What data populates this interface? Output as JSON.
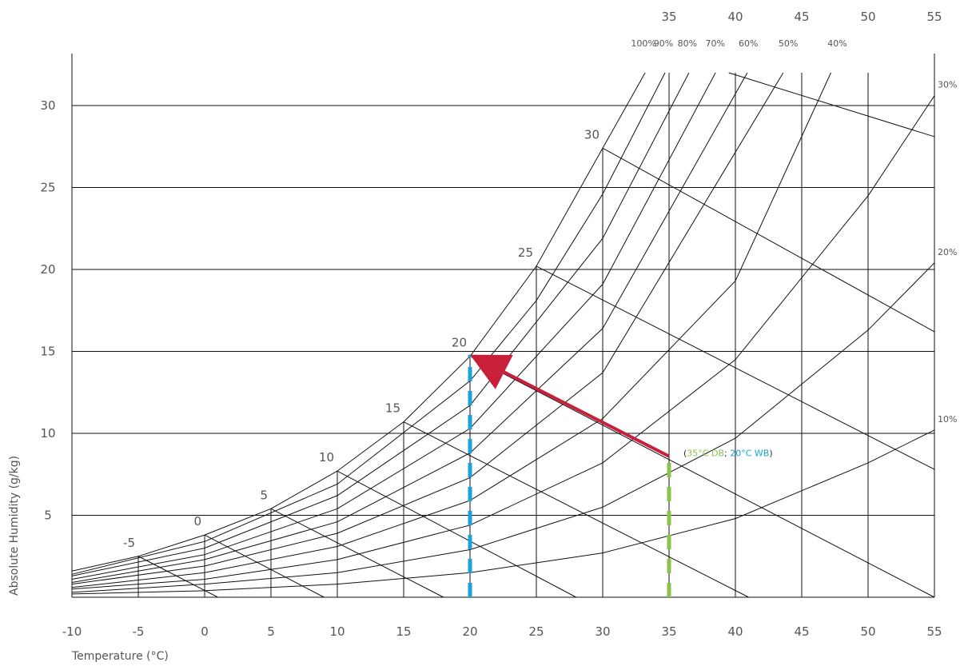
{
  "chart_data": {
    "type": "line",
    "title": "",
    "xlabel": "Temperature (°C)",
    "ylabel": "Absolute Humidity (g/kg)",
    "xlim": [
      -10,
      55
    ],
    "ylim": [
      0,
      32
    ],
    "x_ticks": [
      "-10",
      "-5",
      "0",
      "5",
      "10",
      "15",
      "20",
      "25",
      "30",
      "35",
      "40",
      "45",
      "50",
      "55"
    ],
    "y_ticks": [
      5,
      10,
      15,
      20,
      25,
      30
    ],
    "grid": true,
    "top_temperature_ticks": [
      "35",
      "40",
      "45",
      "50",
      "55"
    ],
    "rh_labels_top": [
      "100%",
      "90%",
      "80%",
      "70%",
      "60%",
      "50%",
      "40%"
    ],
    "rh_labels_right": [
      "30%",
      "20%",
      "10%"
    ],
    "wet_bulb_labels": [
      "-5",
      "0",
      "5",
      "10",
      "15",
      "20",
      "25",
      "30"
    ],
    "series": [
      {
        "name": "100%",
        "rh": 1.0,
        "points": [
          [
            -10,
            1.6
          ],
          [
            -5,
            2.5
          ],
          [
            0,
            3.8
          ],
          [
            5,
            5.4
          ],
          [
            10,
            7.7
          ],
          [
            15,
            10.7
          ],
          [
            20,
            14.7
          ],
          [
            25,
            20.2
          ],
          [
            30,
            27.4
          ],
          [
            33.2,
            32
          ]
        ]
      },
      {
        "name": "90%",
        "rh": 0.9,
        "points": [
          [
            -10,
            1.4
          ],
          [
            0,
            3.4
          ],
          [
            10,
            6.9
          ],
          [
            20,
            13.2
          ],
          [
            25,
            18.1
          ],
          [
            30,
            24.6
          ],
          [
            34.7,
            32
          ]
        ]
      },
      {
        "name": "80%",
        "rh": 0.8,
        "points": [
          [
            -10,
            1.3
          ],
          [
            0,
            3.0
          ],
          [
            10,
            6.2
          ],
          [
            20,
            11.7
          ],
          [
            30,
            21.9
          ],
          [
            36.5,
            32
          ]
        ]
      },
      {
        "name": "70%",
        "rh": 0.7,
        "points": [
          [
            -10,
            1.1
          ],
          [
            0,
            2.6
          ],
          [
            10,
            5.4
          ],
          [
            20,
            10.3
          ],
          [
            30,
            19.1
          ],
          [
            38.5,
            32
          ]
        ]
      },
      {
        "name": "60%",
        "rh": 0.6,
        "points": [
          [
            -10,
            0.9
          ],
          [
            0,
            2.3
          ],
          [
            10,
            4.6
          ],
          [
            20,
            8.8
          ],
          [
            30,
            16.4
          ],
          [
            40.9,
            32
          ]
        ]
      },
      {
        "name": "50%",
        "rh": 0.5,
        "points": [
          [
            -10,
            0.8
          ],
          [
            0,
            1.9
          ],
          [
            10,
            3.9
          ],
          [
            20,
            7.3
          ],
          [
            30,
            13.7
          ],
          [
            43.6,
            32
          ]
        ]
      },
      {
        "name": "40%",
        "rh": 0.4,
        "points": [
          [
            -10,
            0.6
          ],
          [
            0,
            1.5
          ],
          [
            10,
            3.1
          ],
          [
            20,
            5.9
          ],
          [
            30,
            10.9
          ],
          [
            40,
            19.3
          ],
          [
            47.2,
            32
          ]
        ]
      },
      {
        "name": "30%",
        "rh": 0.3,
        "points": [
          [
            -10,
            0.5
          ],
          [
            0,
            1.1
          ],
          [
            10,
            2.3
          ],
          [
            20,
            4.4
          ],
          [
            30,
            8.2
          ],
          [
            40,
            14.5
          ],
          [
            50,
            24.5
          ],
          [
            55,
            30.6
          ]
        ]
      },
      {
        "name": "20%",
        "rh": 0.2,
        "points": [
          [
            -10,
            0.3
          ],
          [
            0,
            0.8
          ],
          [
            10,
            1.5
          ],
          [
            20,
            2.9
          ],
          [
            30,
            5.5
          ],
          [
            40,
            9.7
          ],
          [
            50,
            16.3
          ],
          [
            55,
            20.4
          ]
        ]
      },
      {
        "name": "10%",
        "rh": 0.1,
        "points": [
          [
            -10,
            0.2
          ],
          [
            0,
            0.4
          ],
          [
            10,
            0.8
          ],
          [
            20,
            1.5
          ],
          [
            30,
            2.7
          ],
          [
            40,
            4.8
          ],
          [
            50,
            8.2
          ],
          [
            55,
            10.2
          ]
        ]
      }
    ],
    "wet_bulb_lines": [
      {
        "label": "-5",
        "from": [
          -5,
          2.5
        ],
        "to": [
          1,
          0
        ]
      },
      {
        "label": "0",
        "from": [
          0,
          3.8
        ],
        "to": [
          9,
          0
        ]
      },
      {
        "label": "5",
        "from": [
          5,
          5.4
        ],
        "to": [
          18,
          0
        ]
      },
      {
        "label": "10",
        "from": [
          10,
          7.7
        ],
        "to": [
          28,
          0
        ]
      },
      {
        "label": "15",
        "from": [
          15,
          10.7
        ],
        "to": [
          41,
          0
        ]
      },
      {
        "label": "20",
        "from": [
          20,
          14.7
        ],
        "to": [
          55,
          0
        ]
      },
      {
        "label": "25",
        "from": [
          25,
          20.2
        ],
        "to": [
          55,
          7.8
        ]
      },
      {
        "label": "30",
        "from": [
          30,
          27.4
        ],
        "to": [
          55,
          16.2
        ]
      },
      {
        "label": "",
        "from": [
          39.5,
          32
        ],
        "to": [
          55,
          28.1
        ]
      }
    ],
    "annotations": {
      "dry_bulb": {
        "x": 35,
        "color": "#8bc34a"
      },
      "wet_bulb": {
        "x": 20,
        "color": "#1aa3d9"
      },
      "start_point": [
        35,
        8.6
      ],
      "end_point": [
        20,
        14.8
      ],
      "arrow_color": "#c8203a",
      "label_open": "(",
      "label_db": "35°C DB",
      "label_sep": "; ",
      "label_wb": "20°C WB",
      "label_close": ")"
    }
  }
}
